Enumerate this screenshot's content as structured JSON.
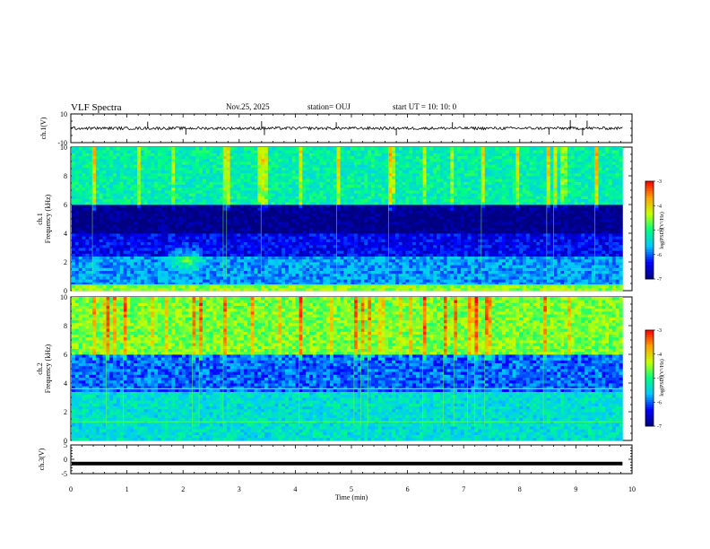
{
  "header": {
    "title": "VLF Spectra",
    "date": "Nov.25, 2025",
    "station": "station= OUJ",
    "start": "start  UT  =   10: 10: 0"
  },
  "chart_data": {
    "type": "heatmap",
    "title": "VLF Spectra",
    "xlabel": "Time  (min)",
    "xlim": [
      0,
      10
    ],
    "x_ticks": [
      0,
      1,
      2,
      3,
      4,
      5,
      6,
      7,
      8,
      9,
      10
    ],
    "data_end_min": 9.83,
    "panels": [
      {
        "id": "ch1-waveform",
        "kind": "line",
        "ylabel": "ch.1(V)",
        "ylim": [
          -10,
          10
        ],
        "y_ticks": [
          10,
          -10
        ],
        "baseline": 0,
        "noise_amplitude": 1.0,
        "spikes_min": [
          1.37,
          2.05,
          3.4,
          3.45,
          4.73,
          5.8,
          6.8,
          8.52,
          8.9,
          9.12,
          9.2
        ]
      },
      {
        "id": "ch1-spectrogram",
        "kind": "heatmap",
        "ylabel_top": "ch.1",
        "ylabel": "Frequency  (kHz)",
        "ylim": [
          0,
          10
        ],
        "y_ticks": [
          0,
          2,
          4,
          6,
          8,
          10
        ],
        "colorbar": {
          "label": "log(PSD)(V²/Hz)",
          "range": [
            -7,
            -3
          ],
          "ticks": [
            "-3",
            "-4",
            "-5",
            "-6",
            "-7"
          ]
        },
        "dominant_levels": [
          {
            "band_khz": [
              0,
              0.5
            ],
            "level": -4.5
          },
          {
            "band_khz": [
              0.5,
              2.5
            ],
            "level": -5.8
          },
          {
            "band_khz": [
              2.5,
              4.0
            ],
            "level": -6.4
          },
          {
            "band_khz": [
              4.0,
              6.0
            ],
            "level": -7.0
          },
          {
            "band_khz": [
              6.0,
              10.0
            ],
            "level": -5.2
          }
        ],
        "bright_spot": {
          "time_min": 2.05,
          "freq_khz": 2.2
        }
      },
      {
        "id": "ch2-spectrogram",
        "kind": "heatmap",
        "ylabel_top": "ch.2",
        "ylabel": "Frequency  (kHz)",
        "ylim": [
          0,
          10
        ],
        "y_ticks": [
          0,
          2,
          4,
          6,
          8,
          10
        ],
        "colorbar": {
          "label": "log(PSD)(V²/Hz)",
          "range": [
            -7,
            -3
          ],
          "ticks": [
            "-3",
            "-4",
            "-5",
            "-6",
            "-7"
          ]
        },
        "dominant_levels": [
          {
            "band_khz": [
              0,
              3.5
            ],
            "level": -5.4
          },
          {
            "band_khz": [
              3.5,
              6.0
            ],
            "level": -6.0
          },
          {
            "band_khz": [
              6.0,
              10.0
            ],
            "level": -4.6
          }
        ],
        "line_khz": [
          1.3,
          3.6
        ]
      },
      {
        "id": "ch3-waveform",
        "kind": "line",
        "ylabel": "ch.3(V)",
        "ylim": [
          -5,
          5
        ],
        "y_ticks": [
          5,
          0,
          -5
        ],
        "baseline": -1.5
      }
    ]
  },
  "colors": {
    "line": "#000000",
    "colormap": [
      "#000080",
      "#0000ff",
      "#00c8ff",
      "#00ff80",
      "#c8ff00",
      "#ffa000",
      "#ff0000"
    ]
  }
}
